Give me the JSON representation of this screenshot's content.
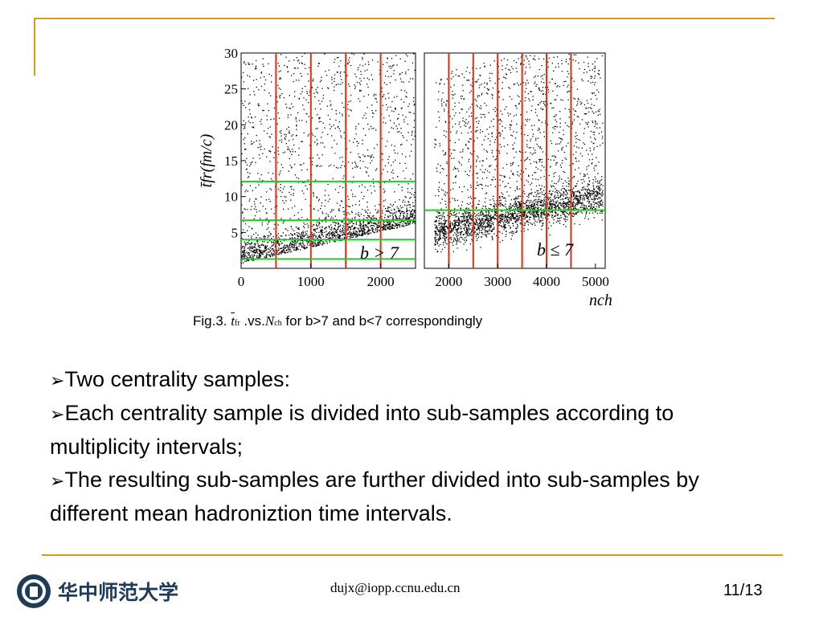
{
  "chart_data": [
    {
      "type": "scatter",
      "panel": "left",
      "title": "",
      "ylabel": "t̄fr(fm/c)",
      "xlabel": "",
      "xlim": [
        0,
        2500
      ],
      "ylim": [
        0,
        30
      ],
      "xticks": [
        "0",
        "1000",
        "2000"
      ],
      "yticks": [
        "5",
        "10",
        "15",
        "20",
        "25",
        "30"
      ],
      "annotation": "b > 7",
      "vertical_cuts_x": [
        500,
        1000,
        1500,
        2000
      ],
      "horizontal_cuts_y": [
        1.3,
        4,
        6.7,
        12.1
      ]
    },
    {
      "type": "scatter",
      "panel": "right",
      "title": "",
      "ylabel": "",
      "xlabel": "nch",
      "xlim": [
        1500,
        5200
      ],
      "ylim": [
        0,
        30
      ],
      "xticks": [
        "2000",
        "3000",
        "4000",
        "5000"
      ],
      "annotation": "b ≤ 7",
      "vertical_cuts_x": [
        2000,
        2500,
        3000,
        3500,
        4000,
        4500
      ],
      "horizontal_cuts_y": [
        8.1
      ]
    }
  ],
  "caption": {
    "prefix": "Fig.3.",
    "t_symbol": "t",
    "t_sub": "fr",
    "middle": ".vs.",
    "n_symbol": "N",
    "n_sub": "ch",
    "suffix": "for b>7 and b<7 correspondingly"
  },
  "bullets": [
    {
      "marker": "➢",
      "text": "Two centrality samples:"
    },
    {
      "marker": "➢",
      "text": "Each centrality sample is divided into sub-samples according to multiplicity intervals;"
    },
    {
      "marker": "➢",
      "text": "The resulting sub-samples are further divided into sub-samples by different mean hadroniztion time intervals."
    }
  ],
  "footer": {
    "email": "dujx@iopp.ccnu.edu.cn",
    "page": "11/13",
    "university_name": "华中师范大学"
  },
  "colors": {
    "accent": "#d4a017",
    "cut_vertical": "#e03010",
    "cut_horizontal": "#22cc22",
    "points": "#000000"
  }
}
